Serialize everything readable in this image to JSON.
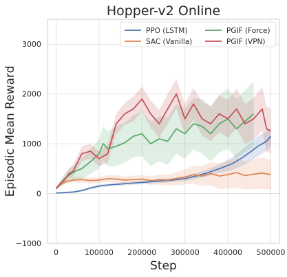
{
  "chart_data": {
    "type": "line",
    "title": "Hopper-v2 Online",
    "xlabel": "Step",
    "ylabel": "Episodic Mean Reward",
    "xlim": [
      -20000,
      520000
    ],
    "ylim": [
      -1000,
      3500
    ],
    "xticks": [
      0,
      100000,
      200000,
      300000,
      400000,
      500000
    ],
    "yticks": [
      -1000,
      0,
      1000,
      2000,
      3000
    ],
    "grid": true,
    "legend_position": "top-right",
    "legend_columns": 2,
    "series": [
      {
        "name": "PPO (LSTM)",
        "color": "#4c72b0",
        "x": [
          0,
          20000,
          40000,
          60000,
          80000,
          100000,
          120000,
          150000,
          180000,
          210000,
          240000,
          270000,
          300000,
          330000,
          350000,
          370000,
          390000,
          410000,
          430000,
          450000,
          470000,
          490000,
          500000
        ],
        "y": [
          10,
          20,
          30,
          60,
          110,
          150,
          170,
          190,
          210,
          230,
          250,
          270,
          300,
          360,
          410,
          470,
          530,
          600,
          700,
          820,
          950,
          1050,
          1150
        ],
        "band": [
          10,
          12,
          15,
          20,
          25,
          30,
          30,
          30,
          35,
          35,
          40,
          45,
          50,
          60,
          70,
          80,
          100,
          130,
          160,
          180,
          200,
          200,
          200
        ]
      },
      {
        "name": "SAC (Vanilla)",
        "color": "#dd8452",
        "x": [
          0,
          10000,
          20000,
          40000,
          60000,
          80000,
          100000,
          120000,
          140000,
          160000,
          180000,
          200000,
          220000,
          240000,
          260000,
          280000,
          300000,
          320000,
          340000,
          360000,
          380000,
          400000,
          420000,
          440000,
          460000,
          480000,
          500000
        ],
        "y": [
          100,
          180,
          230,
          270,
          280,
          260,
          270,
          300,
          290,
          270,
          280,
          290,
          260,
          280,
          270,
          300,
          330,
          380,
          350,
          400,
          350,
          380,
          420,
          360,
          390,
          410,
          380
        ],
        "band": [
          20,
          30,
          40,
          50,
          60,
          60,
          60,
          70,
          80,
          70,
          80,
          80,
          90,
          100,
          110,
          130,
          150,
          180,
          200,
          230,
          260,
          280,
          300,
          280,
          300,
          320,
          300
        ]
      },
      {
        "name": "PGIF (Force)",
        "color": "#55a868",
        "x": [
          0,
          10000,
          20000,
          40000,
          60000,
          80000,
          100000,
          110000,
          120000,
          140000,
          160000,
          180000,
          200000,
          220000,
          240000,
          260000,
          280000,
          300000,
          320000,
          340000,
          360000,
          380000,
          400000,
          420000,
          440000,
          460000
        ],
        "y": [
          100,
          200,
          300,
          430,
          500,
          640,
          800,
          1000,
          900,
          950,
          1020,
          1150,
          1200,
          1000,
          1100,
          1050,
          1300,
          1200,
          1400,
          1350,
          1200,
          1400,
          1500,
          1300,
          1450,
          1600
        ],
        "band": [
          30,
          60,
          100,
          150,
          200,
          250,
          300,
          350,
          350,
          400,
          400,
          420,
          450,
          450,
          450,
          480,
          500,
          500,
          520,
          550,
          550,
          580,
          600,
          600,
          620,
          650
        ]
      },
      {
        "name": "PGIF (VPN)",
        "color": "#c44e52",
        "x": [
          0,
          10000,
          20000,
          30000,
          40000,
          60000,
          80000,
          100000,
          120000,
          140000,
          160000,
          180000,
          200000,
          220000,
          240000,
          260000,
          280000,
          300000,
          320000,
          340000,
          360000,
          380000,
          400000,
          420000,
          440000,
          460000,
          480000,
          490000,
          500000
        ],
        "y": [
          100,
          200,
          280,
          400,
          450,
          800,
          850,
          700,
          800,
          1400,
          1600,
          1700,
          1900,
          1600,
          1400,
          1700,
          2000,
          1500,
          1800,
          1500,
          1400,
          1600,
          1500,
          1700,
          1400,
          1500,
          1700,
          1300,
          1250
        ],
        "band": [
          20,
          50,
          80,
          100,
          120,
          150,
          150,
          150,
          180,
          200,
          220,
          250,
          250,
          270,
          280,
          300,
          300,
          300,
          320,
          340,
          350,
          370,
          380,
          400,
          400,
          420,
          440,
          450,
          450
        ]
      }
    ]
  }
}
